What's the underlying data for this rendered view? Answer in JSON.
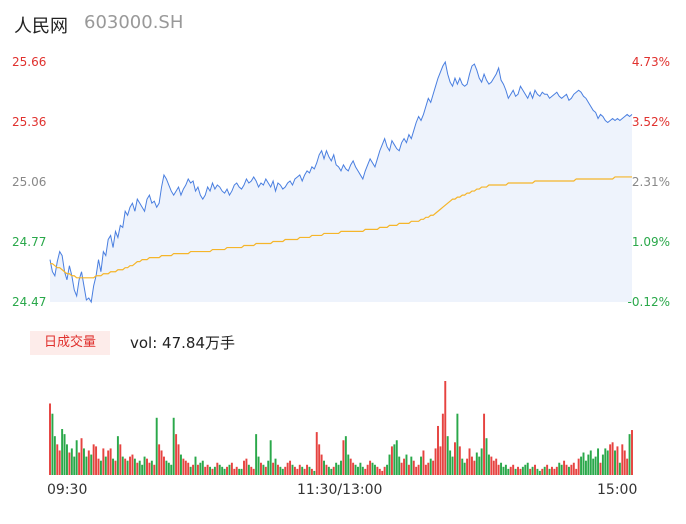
{
  "header": {
    "name": "人民网",
    "code": "603000.SH"
  },
  "volume_panel": {
    "tag": "日成交量",
    "label": "vol: 47.84万手"
  },
  "colors": {
    "price_line": "#4a7fe0",
    "avg_line": "#f5b52a",
    "up": "#e64340",
    "down": "#2aa84a",
    "neutral": "#888888",
    "area": "#eef3fc"
  },
  "chart_data": [
    {
      "type": "line",
      "y_left_ticks": [
        "25.66",
        "25.36",
        "25.06",
        "24.77",
        "24.47"
      ],
      "y_right_ticks": [
        "4.73%",
        "3.52%",
        "2.31%",
        "1.09%",
        "-0.12%"
      ],
      "x_ticks": [
        "09:30",
        "11:30/13:00",
        "15:00"
      ],
      "ylim": [
        24.47,
        25.66
      ],
      "n_points": 241,
      "series": [
        {
          "name": "",
          "kind": "price",
          "values": [
            24.68,
            24.62,
            24.6,
            24.67,
            24.72,
            24.7,
            24.62,
            24.58,
            24.65,
            24.6,
            24.53,
            24.5,
            24.58,
            24.62,
            24.55,
            24.48,
            24.49,
            24.47,
            24.55,
            24.6,
            24.68,
            24.62,
            24.72,
            24.7,
            24.78,
            24.8,
            24.74,
            24.82,
            24.79,
            24.85,
            24.84,
            24.92,
            24.9,
            24.94,
            24.96,
            24.92,
            24.98,
            24.96,
            24.94,
            24.92,
            24.98,
            25.0,
            24.96,
            24.97,
            24.94,
            24.96,
            25.04,
            25.1,
            25.08,
            25.05,
            25.02,
            25.0,
            25.02,
            25.04,
            25.0,
            25.03,
            25.05,
            25.08,
            25.06,
            25.07,
            25.02,
            25.04,
            25.0,
            24.98,
            25.0,
            25.04,
            25.02,
            25.06,
            25.03,
            25.05,
            25.04,
            25.02,
            25.01,
            25.03,
            25.0,
            25.02,
            25.05,
            25.06,
            25.04,
            25.03,
            25.05,
            25.08,
            25.06,
            25.07,
            25.09,
            25.07,
            25.04,
            25.06,
            25.05,
            25.08,
            25.06,
            25.04,
            25.07,
            25.02,
            25.06,
            25.05,
            25.03,
            25.04,
            25.06,
            25.07,
            25.05,
            25.08,
            25.09,
            25.1,
            25.07,
            25.1,
            25.12,
            25.11,
            25.14,
            25.13,
            25.16,
            25.2,
            25.22,
            25.18,
            25.22,
            25.19,
            25.17,
            25.2,
            25.15,
            25.14,
            25.12,
            25.15,
            25.13,
            25.12,
            25.15,
            25.17,
            25.14,
            25.12,
            25.1,
            25.08,
            25.12,
            25.15,
            25.18,
            25.16,
            25.14,
            25.18,
            25.22,
            25.25,
            25.28,
            25.24,
            25.22,
            25.27,
            25.25,
            25.23,
            25.22,
            25.26,
            25.28,
            25.26,
            25.3,
            25.28,
            25.32,
            25.36,
            25.39,
            25.37,
            25.4,
            25.44,
            25.48,
            25.46,
            25.5,
            25.54,
            25.58,
            25.61,
            25.64,
            25.66,
            25.6,
            25.56,
            25.54,
            25.58,
            25.55,
            25.58,
            25.55,
            25.54,
            25.55,
            25.6,
            25.64,
            25.65,
            25.62,
            25.58,
            25.56,
            25.6,
            25.57,
            25.55,
            25.56,
            25.58,
            25.6,
            25.63,
            25.57,
            25.55,
            25.52,
            25.48,
            25.5,
            25.52,
            25.49,
            25.5,
            25.54,
            25.52,
            25.5,
            25.48,
            25.51,
            25.48,
            25.52,
            25.5,
            25.49,
            25.51,
            25.5,
            25.5,
            25.48,
            25.49,
            25.5,
            25.51,
            25.49,
            25.48,
            25.49,
            25.5,
            25.47,
            25.48,
            25.5,
            25.51,
            25.52,
            25.51,
            25.49,
            25.48,
            25.46,
            25.44,
            25.42,
            25.41,
            25.38,
            25.4,
            25.39,
            25.37,
            25.36,
            25.37,
            25.38,
            25.37,
            25.38,
            25.37,
            25.38,
            25.39,
            25.4,
            25.39,
            25.4
          ]
        },
        {
          "name": "",
          "kind": "avg",
          "values": [
            24.66,
            24.66,
            24.65,
            24.64,
            24.64,
            24.63,
            24.62,
            24.61,
            24.61,
            24.6,
            24.6,
            24.59,
            24.59,
            24.59,
            24.59,
            24.59,
            24.59,
            24.59,
            24.59,
            24.6,
            24.6,
            24.6,
            24.61,
            24.61,
            24.61,
            24.62,
            24.62,
            24.62,
            24.63,
            24.63,
            24.63,
            24.64,
            24.64,
            24.65,
            24.65,
            24.66,
            24.67,
            24.67,
            24.68,
            24.68,
            24.68,
            24.69,
            24.69,
            24.69,
            24.69,
            24.69,
            24.7,
            24.7,
            24.7,
            24.7,
            24.7,
            24.71,
            24.71,
            24.71,
            24.71,
            24.71,
            24.71,
            24.71,
            24.72,
            24.72,
            24.72,
            24.72,
            24.72,
            24.72,
            24.72,
            24.72,
            24.72,
            24.73,
            24.73,
            24.73,
            24.73,
            24.73,
            24.73,
            24.74,
            24.74,
            24.74,
            24.74,
            24.74,
            24.74,
            24.74,
            24.75,
            24.75,
            24.75,
            24.75,
            24.75,
            24.76,
            24.76,
            24.76,
            24.76,
            24.76,
            24.76,
            24.76,
            24.77,
            24.77,
            24.77,
            24.77,
            24.77,
            24.78,
            24.78,
            24.78,
            24.78,
            24.78,
            24.78,
            24.79,
            24.79,
            24.79,
            24.79,
            24.79,
            24.8,
            24.8,
            24.8,
            24.8,
            24.8,
            24.81,
            24.81,
            24.81,
            24.81,
            24.81,
            24.81,
            24.81,
            24.82,
            24.82,
            24.82,
            24.82,
            24.82,
            24.82,
            24.82,
            24.82,
            24.82,
            24.82,
            24.83,
            24.83,
            24.83,
            24.83,
            24.83,
            24.83,
            24.84,
            24.84,
            24.84,
            24.84,
            24.85,
            24.85,
            24.85,
            24.85,
            24.86,
            24.86,
            24.86,
            24.86,
            24.86,
            24.87,
            24.87,
            24.87,
            24.87,
            24.88,
            24.88,
            24.89,
            24.89,
            24.9,
            24.9,
            24.91,
            24.92,
            24.93,
            24.94,
            24.95,
            24.96,
            24.97,
            24.98,
            24.98,
            24.99,
            24.99,
            25.0,
            25.0,
            25.01,
            25.01,
            25.02,
            25.02,
            25.03,
            25.03,
            25.04,
            25.04,
            25.04,
            25.05,
            25.05,
            25.05,
            25.05,
            25.05,
            25.05,
            25.05,
            25.05,
            25.06,
            25.06,
            25.06,
            25.06,
            25.06,
            25.06,
            25.06,
            25.06,
            25.06,
            25.06,
            25.06,
            25.07,
            25.07,
            25.07,
            25.07,
            25.07,
            25.07,
            25.07,
            25.07,
            25.07,
            25.07,
            25.07,
            25.07,
            25.07,
            25.07,
            25.07,
            25.07,
            25.07,
            25.08,
            25.08,
            25.08,
            25.08,
            25.08,
            25.08,
            25.08,
            25.08,
            25.08,
            25.08,
            25.08,
            25.08,
            25.08,
            25.08,
            25.08,
            25.08,
            25.09,
            25.09,
            25.09,
            25.09,
            25.09,
            25.09,
            25.09,
            25.09
          ]
        }
      ]
    },
    {
      "type": "bar",
      "name": "volume",
      "max": 92,
      "values": [
        70,
        60,
        38,
        30,
        24,
        45,
        40,
        30,
        22,
        26,
        18,
        34,
        22,
        36,
        26,
        18,
        24,
        20,
        30,
        28,
        16,
        14,
        26,
        18,
        24,
        26,
        16,
        14,
        38,
        30,
        18,
        16,
        14,
        18,
        20,
        16,
        12,
        14,
        10,
        18,
        16,
        12,
        14,
        10,
        56,
        30,
        24,
        18,
        14,
        12,
        10,
        56,
        40,
        30,
        20,
        16,
        14,
        12,
        8,
        10,
        18,
        10,
        12,
        14,
        8,
        10,
        8,
        6,
        8,
        12,
        10,
        8,
        6,
        8,
        10,
        12,
        6,
        8,
        6,
        6,
        14,
        16,
        10,
        8,
        6,
        40,
        18,
        12,
        10,
        8,
        14,
        34,
        12,
        16,
        10,
        8,
        6,
        8,
        12,
        14,
        10,
        8,
        6,
        10,
        8,
        6,
        10,
        8,
        6,
        4,
        42,
        30,
        20,
        14,
        10,
        8,
        6,
        8,
        12,
        10,
        14,
        34,
        38,
        20,
        16,
        12,
        10,
        8,
        12,
        8,
        6,
        10,
        14,
        12,
        10,
        8,
        6,
        4,
        8,
        10,
        20,
        28,
        30,
        34,
        18,
        12,
        16,
        20,
        10,
        18,
        14,
        8,
        10,
        18,
        24,
        10,
        12,
        16,
        14,
        26,
        48,
        28,
        60,
        92,
        38,
        24,
        18,
        32,
        60,
        28,
        16,
        12,
        16,
        26,
        18,
        14,
        22,
        18,
        26,
        60,
        36,
        20,
        18,
        14,
        16,
        10,
        12,
        8,
        10,
        6,
        8,
        10,
        6,
        8,
        6,
        8,
        10,
        12,
        6,
        8,
        10,
        6,
        4,
        6,
        8,
        10,
        6,
        8,
        6,
        8,
        12,
        10,
        14,
        10,
        8,
        10,
        12,
        6,
        16,
        18,
        22,
        14,
        20,
        24,
        16,
        18,
        26,
        12,
        20,
        26,
        24,
        30,
        32,
        24,
        28,
        12,
        30,
        24,
        16,
        40,
        44
      ]
    }
  ]
}
